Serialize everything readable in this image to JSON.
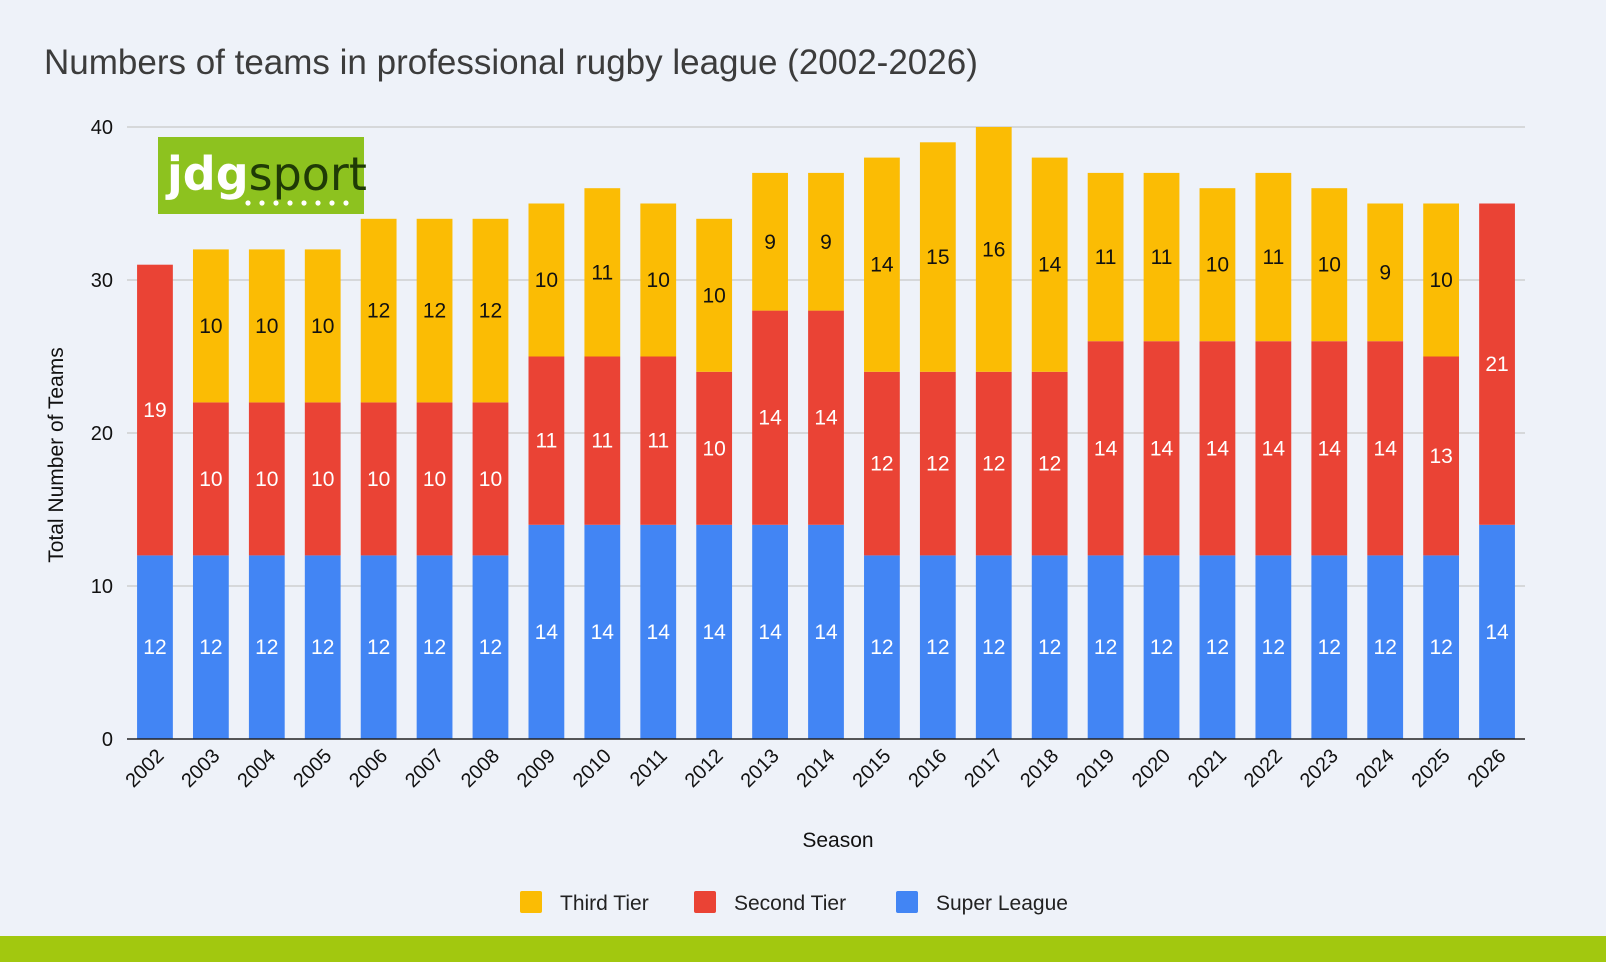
{
  "colors": {
    "background": "#eef2f9",
    "footer_bar": "#a2c80f",
    "logo_bg": "#8dc21f",
    "gridline": "#c8c8c8",
    "axis_line": "#222222"
  },
  "logo": {
    "part1": "jdg",
    "part2": "sport"
  },
  "chart_data": {
    "type": "bar",
    "stacked": true,
    "title": "Numbers of teams in professional rugby league (2002-2026)",
    "xlabel": "Season",
    "ylabel": "Total Number of Teams",
    "ylim": [
      0,
      40
    ],
    "yticks": [
      "0",
      "10",
      "20",
      "30",
      "40"
    ],
    "grid": true,
    "legend_position": "bottom",
    "categories": [
      "2002",
      "2003",
      "2004",
      "2005",
      "2006",
      "2007",
      "2008",
      "2009",
      "2010",
      "2011",
      "2012",
      "2013",
      "2014",
      "2015",
      "2016",
      "2017",
      "2018",
      "2019",
      "2020",
      "2021",
      "2022",
      "2023",
      "2024",
      "2025",
      "2026"
    ],
    "series": [
      {
        "name": "Super League",
        "color": "#4285f4",
        "label_color": "#ffffff",
        "values": [
          12,
          12,
          12,
          12,
          12,
          12,
          12,
          14,
          14,
          14,
          14,
          14,
          14,
          12,
          12,
          12,
          12,
          12,
          12,
          12,
          12,
          12,
          12,
          12,
          14
        ]
      },
      {
        "name": "Second Tier",
        "color": "#ea4335",
        "label_color": "#ffffff",
        "values": [
          19,
          10,
          10,
          10,
          10,
          10,
          10,
          11,
          11,
          11,
          10,
          14,
          14,
          12,
          12,
          12,
          12,
          14,
          14,
          14,
          14,
          14,
          14,
          13,
          21
        ]
      },
      {
        "name": "Third Tier",
        "color": "#fbbc04",
        "label_color": "#111111",
        "values": [
          0,
          10,
          10,
          10,
          12,
          12,
          12,
          10,
          11,
          10,
          10,
          9,
          9,
          14,
          15,
          16,
          14,
          11,
          11,
          10,
          11,
          10,
          9,
          10,
          0
        ]
      }
    ],
    "legend_order": [
      "Third Tier",
      "Second Tier",
      "Super League"
    ]
  }
}
